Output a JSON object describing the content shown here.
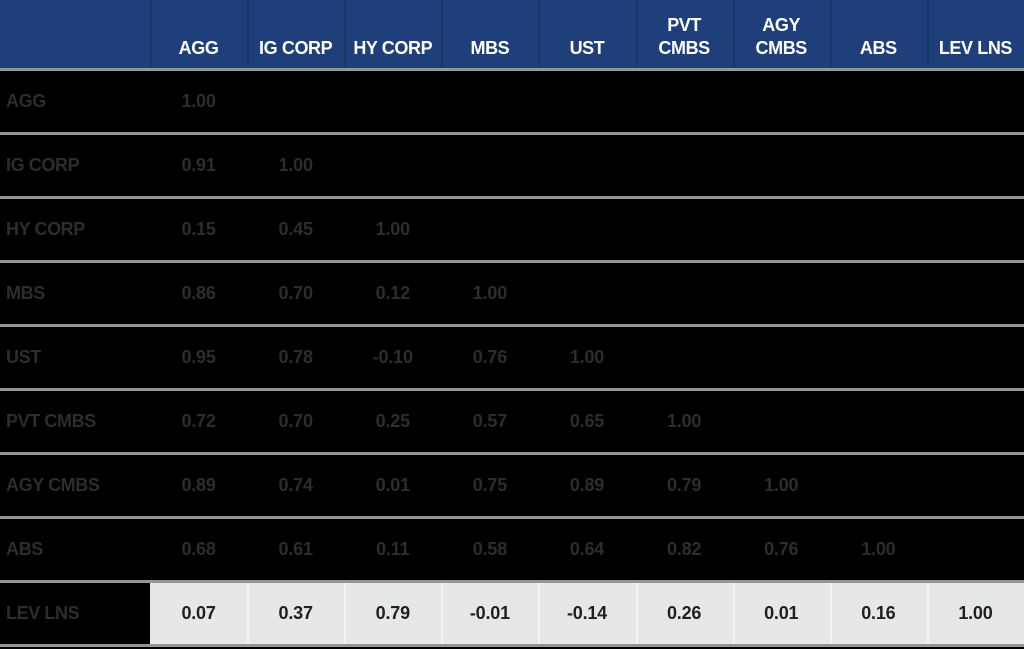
{
  "colors": {
    "header_bg": "#1e3f7a",
    "header_text": "#ffffff",
    "body_bg": "#000000",
    "body_text": "#2e2c2d",
    "separator_line": "#939598",
    "highlight_row_bg": "#e6e7e8",
    "highlight_row_text": "#231f20"
  },
  "table": {
    "columns": [
      {
        "line1": "AGG",
        "line2": ""
      },
      {
        "line1": "IG CORP",
        "line2": ""
      },
      {
        "line1": "HY CORP",
        "line2": ""
      },
      {
        "line1": "MBS",
        "line2": ""
      },
      {
        "line1": "UST",
        "line2": ""
      },
      {
        "line1": "PVT",
        "line2": "CMBS"
      },
      {
        "line1": "AGY",
        "line2": "CMBS"
      },
      {
        "line1": "ABS",
        "line2": ""
      },
      {
        "line1": "LEV LNS",
        "line2": ""
      }
    ],
    "rows": [
      {
        "label": "AGG",
        "values": [
          "1.00"
        ]
      },
      {
        "label": "IG CORP",
        "values": [
          "0.91",
          "1.00"
        ]
      },
      {
        "label": "HY CORP",
        "values": [
          "0.15",
          "0.45",
          "1.00"
        ]
      },
      {
        "label": "MBS",
        "values": [
          "0.86",
          "0.70",
          "0.12",
          "1.00"
        ]
      },
      {
        "label": "UST",
        "values": [
          "0.95",
          "0.78",
          "-0.10",
          "0.76",
          "1.00"
        ]
      },
      {
        "label": "PVT CMBS",
        "values": [
          "0.72",
          "0.70",
          "0.25",
          "0.57",
          "0.65",
          "1.00"
        ]
      },
      {
        "label": "AGY CMBS",
        "values": [
          "0.89",
          "0.74",
          "0.01",
          "0.75",
          "0.89",
          "0.79",
          "1.00"
        ]
      },
      {
        "label": "ABS",
        "values": [
          "0.68",
          "0.61",
          "0.11",
          "0.58",
          "0.64",
          "0.82",
          "0.76",
          "1.00"
        ]
      },
      {
        "label": "LEV LNS",
        "values": [
          "0.07",
          "0.37",
          "0.79",
          "-0.01",
          "-0.14",
          "0.26",
          "0.01",
          "0.16",
          "1.00"
        ]
      }
    ]
  },
  "chart_data": {
    "type": "table",
    "subtype": "correlation-matrix",
    "categories": [
      "AGG",
      "IG CORP",
      "HY CORP",
      "MBS",
      "UST",
      "PVT CMBS",
      "AGY CMBS",
      "ABS",
      "LEV LNS"
    ],
    "row_labels": [
      "AGG",
      "IG CORP",
      "HY CORP",
      "MBS",
      "UST",
      "PVT CMBS",
      "AGY CMBS",
      "ABS",
      "LEV LNS"
    ],
    "matrix": [
      [
        1.0
      ],
      [
        0.91,
        1.0
      ],
      [
        0.15,
        0.45,
        1.0
      ],
      [
        0.86,
        0.7,
        0.12,
        1.0
      ],
      [
        0.95,
        0.78,
        -0.1,
        0.76,
        1.0
      ],
      [
        0.72,
        0.7,
        0.25,
        0.57,
        0.65,
        1.0
      ],
      [
        0.89,
        0.74,
        0.01,
        0.75,
        0.89,
        0.79,
        1.0
      ],
      [
        0.68,
        0.61,
        0.11,
        0.58,
        0.64,
        0.82,
        0.76,
        1.0
      ],
      [
        0.07,
        0.37,
        0.79,
        -0.01,
        -0.14,
        0.26,
        0.01,
        0.16,
        1.0
      ]
    ],
    "highlighted_row": "LEV LNS",
    "layout": "lower-triangular",
    "grid": "horizontal-separators-only",
    "legend": "none"
  }
}
